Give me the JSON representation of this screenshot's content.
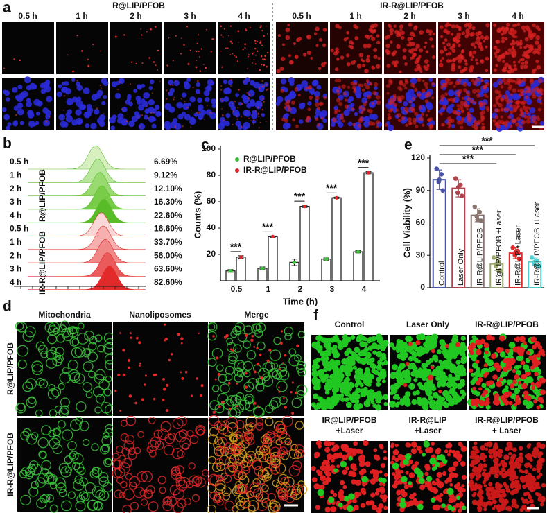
{
  "panel_labels": [
    "a",
    "b",
    "c",
    "d",
    "e",
    "f"
  ],
  "times": [
    "0.5 h",
    "1 h",
    "2 h",
    "3 h",
    "4 h"
  ],
  "panel_a": {
    "groups": [
      "R@LIP/PFOB",
      "IR-R@LIP/PFOB"
    ]
  },
  "panel_b": {
    "groups": [
      {
        "name": "R@LIP/PFOB",
        "color": "#3aa53a",
        "percents": [
          "6.69%",
          "9.12%",
          "12.10%",
          "16.30%",
          "22.60%"
        ]
      },
      {
        "name": "IR-R@LIP/PFOB",
        "color": "#e0262d",
        "percents": [
          "16.60%",
          "33.70%",
          "56.00%",
          "63.60%",
          "82.60%"
        ]
      }
    ]
  },
  "chart_data": [
    {
      "type": "bar",
      "x_label": "Time (h)",
      "y_label": "Counts (%)",
      "categories": [
        "0.5",
        "1",
        "2",
        "3",
        "4"
      ],
      "series": [
        {
          "name": "R@LIP/PFOB",
          "color": "#3cc03c",
          "values": [
            7.5,
            9.5,
            14,
            16.5,
            22
          ],
          "errors": [
            1,
            1,
            2.5,
            0.8,
            0.8
          ]
        },
        {
          "name": "IR-R@LIP/PFOB",
          "color": "#e0262d",
          "values": [
            18,
            33.5,
            56.5,
            63,
            82
          ],
          "errors": [
            1,
            0.5,
            0.8,
            0.5,
            0.8
          ]
        }
      ],
      "significance": [
        "***",
        "***",
        "***",
        "***",
        "***"
      ],
      "ylim": [
        0,
        100
      ],
      "yticks": [
        20,
        40,
        60,
        80,
        100
      ],
      "legend": "upper left"
    },
    {
      "type": "bar",
      "y_label": "Cell Viability (%)",
      "categories": [
        "Control",
        "Laser Only",
        "IR-R@LIP/PFOB",
        "IR@LIP/PFOB +Laser",
        "IR-R@LIP +Laser",
        "IR-R@LIP/PFOB +Laser"
      ],
      "colors": [
        "#4a55a8",
        "#b0444e",
        "#8a7470",
        "#98a86c",
        "#e02c2c",
        "#4fcfd0"
      ],
      "values": [
        100,
        92,
        67,
        22,
        32,
        24
      ],
      "errors": [
        9,
        8,
        6,
        6,
        5,
        3
      ],
      "points": [
        [
          110,
          105,
          98,
          90,
          100
        ],
        [
          101,
          95,
          88,
          85,
          93
        ],
        [
          75,
          70,
          66,
          62,
          63
        ],
        [
          28,
          24,
          20,
          16,
          22
        ],
        [
          37,
          34,
          30,
          27,
          33
        ],
        [
          28,
          25,
          22,
          20,
          24
        ]
      ],
      "comparisons": [
        {
          "label": "***",
          "from": 0,
          "to": 3
        },
        {
          "label": "***",
          "from": 0,
          "to": 4
        },
        {
          "label": "***",
          "from": 0,
          "to": 5
        }
      ],
      "ylim": [
        0,
        120
      ],
      "yticks": [
        0,
        30,
        60,
        90,
        120
      ]
    }
  ],
  "panel_d": {
    "columns": [
      "Mitochondria",
      "Nanoliposomes",
      "Merge"
    ],
    "rows": [
      "R@LIP/PFOB",
      "IR-R@LIP/PFOB"
    ]
  },
  "panel_f": {
    "labels": [
      [
        "Control"
      ],
      [
        "Laser Only"
      ],
      [
        "IR-R@LIP/PFOB"
      ],
      [
        "IR@LIP/PFOB",
        "+Laser"
      ],
      [
        "IR-R@LIP",
        "+Laser"
      ],
      [
        "IR-R@LIP/PFOB",
        "+ Laser"
      ]
    ]
  }
}
